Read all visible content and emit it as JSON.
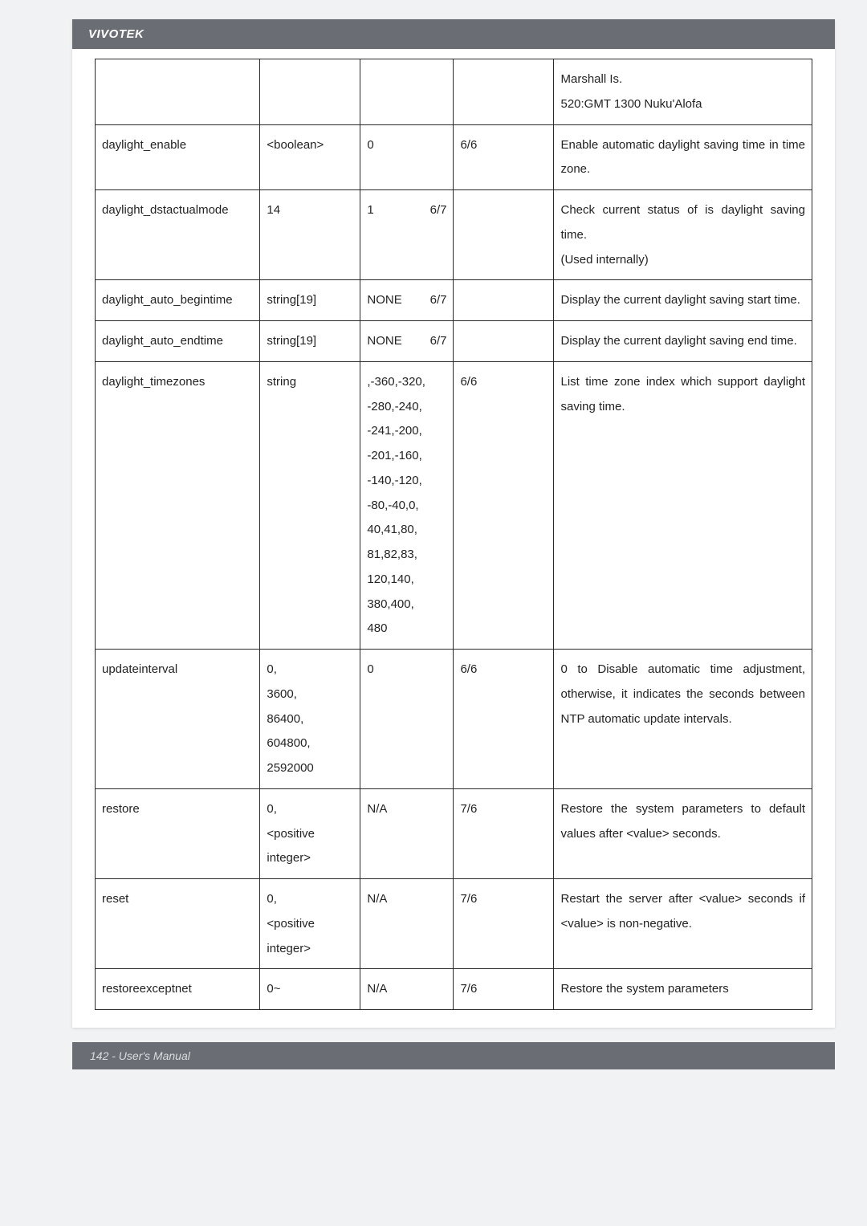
{
  "hdr": "VIVOTEK",
  "ftr": "142 - User's Manual",
  "rows": [
    {
      "c1": "",
      "c2": "",
      "c3": "",
      "c4": "",
      "c5": "Marshall Is.\n520:GMT 1300 Nuku'Alofa"
    },
    {
      "c1": "daylight_enable",
      "c2": "<boolean>",
      "c3": "0",
      "c4": "6/6",
      "c5": "Enable automatic daylight saving time in time zone."
    },
    {
      "c1": "daylight_dstactualmode",
      "c2": "14",
      "c3": "1",
      "c3b": "6/7",
      "c4": "",
      "c5": "Check current status of is daylight saving time.\n(Used internally)"
    },
    {
      "c1": "daylight_auto_begintime",
      "c2": "string[19]",
      "c3": "NONE",
      "c3b": "6/7",
      "c4": "",
      "c5": "Display the current daylight saving start time."
    },
    {
      "c1": "daylight_auto_endtime",
      "c2": "string[19]",
      "c3": "NONE",
      "c3b": "6/7",
      "c4": "",
      "c5": "Display the current daylight saving end time."
    },
    {
      "c1": "daylight_timezones",
      "c2": "string",
      "c3": ",-360,-320,\n-280,-240,\n-241,-200,\n-201,-160,\n-140,-120,\n-80,-40,0,\n40,41,80,\n81,82,83,\n120,140,\n380,400,\n480",
      "c4": "6/6",
      "c5": "List time zone index which support daylight saving time."
    },
    {
      "c1": "updateinterval",
      "c2": "0,\n3600,\n86400,\n604800,\n2592000",
      "c3": "0",
      "c4": "6/6",
      "c5": "0 to Disable automatic time adjustment, otherwise, it indicates the seconds between NTP automatic update intervals."
    },
    {
      "c1": "restore",
      "c2": "0,\n<positive\ninteger>",
      "c3": "N/A",
      "c4": "7/6",
      "c5": "Restore the system parameters to default values after <value> seconds."
    },
    {
      "c1": "reset",
      "c2": "0,\n<positive\ninteger>",
      "c3": "N/A",
      "c4": "7/6",
      "c5": "Restart the server after <value> seconds if <value> is non-negative."
    },
    {
      "c1": "restoreexceptnet",
      "c2": "0~",
      "c3": "N/A",
      "c4": "7/6",
      "c5": "Restore the system parameters"
    }
  ]
}
